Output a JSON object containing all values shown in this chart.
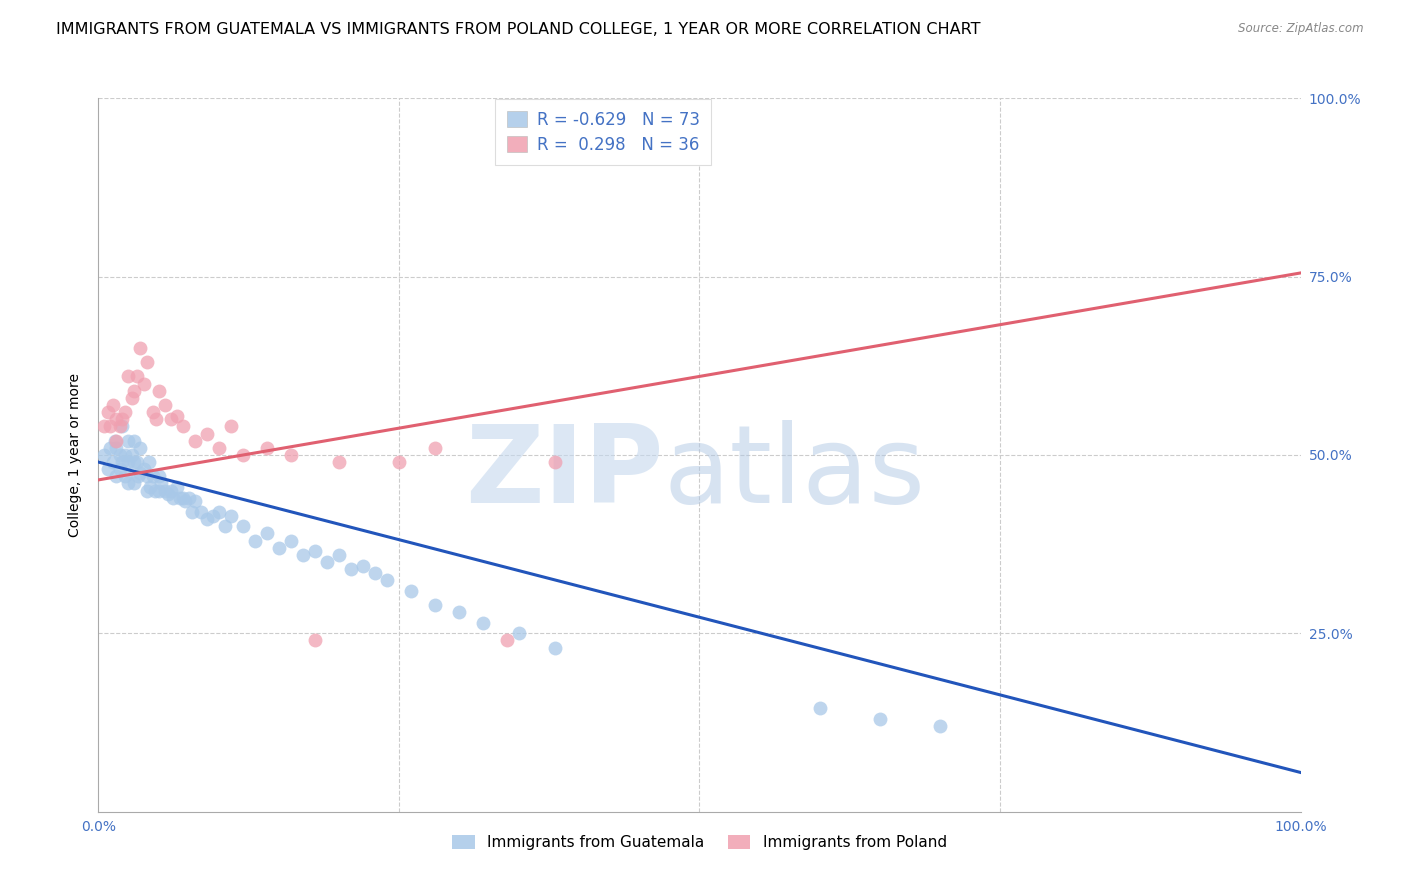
{
  "title": "IMMIGRANTS FROM GUATEMALA VS IMMIGRANTS FROM POLAND COLLEGE, 1 YEAR OR MORE CORRELATION CHART",
  "source": "Source: ZipAtlas.com",
  "ylabel": "College, 1 year or more",
  "xlim": [
    0.0,
    1.0
  ],
  "ylim": [
    0.0,
    1.0
  ],
  "yticks": [
    0.0,
    0.25,
    0.5,
    0.75,
    1.0
  ],
  "ytick_labels": [
    "",
    "25.0%",
    "50.0%",
    "75.0%",
    "100.0%"
  ],
  "xtick_labels": [
    "0.0%",
    "",
    "",
    "",
    "100.0%"
  ],
  "legend_r_blue": "-0.629",
  "legend_n_blue": "73",
  "legend_r_pink": "0.298",
  "legend_n_pink": "36",
  "blue_color": "#a8c8e8",
  "pink_color": "#f0a0b0",
  "blue_line_color": "#2255bb",
  "pink_line_color": "#e06070",
  "title_fontsize": 11.5,
  "label_fontsize": 10,
  "tick_fontsize": 10,
  "axis_label_color": "#4472C4",
  "blue_x": [
    0.005,
    0.008,
    0.01,
    0.012,
    0.014,
    0.015,
    0.015,
    0.018,
    0.018,
    0.02,
    0.02,
    0.022,
    0.022,
    0.025,
    0.025,
    0.025,
    0.028,
    0.03,
    0.03,
    0.03,
    0.032,
    0.033,
    0.035,
    0.035,
    0.038,
    0.04,
    0.04,
    0.042,
    0.043,
    0.045,
    0.047,
    0.05,
    0.05,
    0.052,
    0.055,
    0.058,
    0.06,
    0.062,
    0.065,
    0.068,
    0.07,
    0.072,
    0.075,
    0.078,
    0.08,
    0.085,
    0.09,
    0.095,
    0.1,
    0.105,
    0.11,
    0.12,
    0.13,
    0.14,
    0.15,
    0.16,
    0.17,
    0.18,
    0.19,
    0.2,
    0.21,
    0.22,
    0.23,
    0.24,
    0.26,
    0.28,
    0.3,
    0.32,
    0.35,
    0.38,
    0.6,
    0.65,
    0.7
  ],
  "blue_y": [
    0.5,
    0.48,
    0.51,
    0.49,
    0.52,
    0.51,
    0.47,
    0.5,
    0.48,
    0.54,
    0.49,
    0.5,
    0.47,
    0.52,
    0.49,
    0.46,
    0.5,
    0.52,
    0.49,
    0.46,
    0.49,
    0.47,
    0.51,
    0.475,
    0.48,
    0.47,
    0.45,
    0.49,
    0.455,
    0.47,
    0.45,
    0.47,
    0.45,
    0.46,
    0.45,
    0.445,
    0.45,
    0.44,
    0.455,
    0.44,
    0.44,
    0.435,
    0.44,
    0.42,
    0.435,
    0.42,
    0.41,
    0.415,
    0.42,
    0.4,
    0.415,
    0.4,
    0.38,
    0.39,
    0.37,
    0.38,
    0.36,
    0.365,
    0.35,
    0.36,
    0.34,
    0.345,
    0.335,
    0.325,
    0.31,
    0.29,
    0.28,
    0.265,
    0.25,
    0.23,
    0.145,
    0.13,
    0.12
  ],
  "pink_x": [
    0.005,
    0.008,
    0.01,
    0.012,
    0.015,
    0.015,
    0.018,
    0.02,
    0.022,
    0.025,
    0.028,
    0.03,
    0.032,
    0.035,
    0.038,
    0.04,
    0.045,
    0.048,
    0.05,
    0.055,
    0.06,
    0.065,
    0.07,
    0.08,
    0.09,
    0.1,
    0.11,
    0.12,
    0.14,
    0.16,
    0.18,
    0.2,
    0.25,
    0.28,
    0.34,
    0.38
  ],
  "pink_y": [
    0.54,
    0.56,
    0.54,
    0.57,
    0.55,
    0.52,
    0.54,
    0.55,
    0.56,
    0.61,
    0.58,
    0.59,
    0.61,
    0.65,
    0.6,
    0.63,
    0.56,
    0.55,
    0.59,
    0.57,
    0.55,
    0.555,
    0.54,
    0.52,
    0.53,
    0.51,
    0.54,
    0.5,
    0.51,
    0.5,
    0.24,
    0.49,
    0.49,
    0.51,
    0.24,
    0.49
  ],
  "blue_line_x": [
    0.0,
    1.0
  ],
  "blue_line_y": [
    0.49,
    0.055
  ],
  "pink_line_x": [
    0.0,
    1.0
  ],
  "pink_line_y": [
    0.465,
    0.755
  ]
}
